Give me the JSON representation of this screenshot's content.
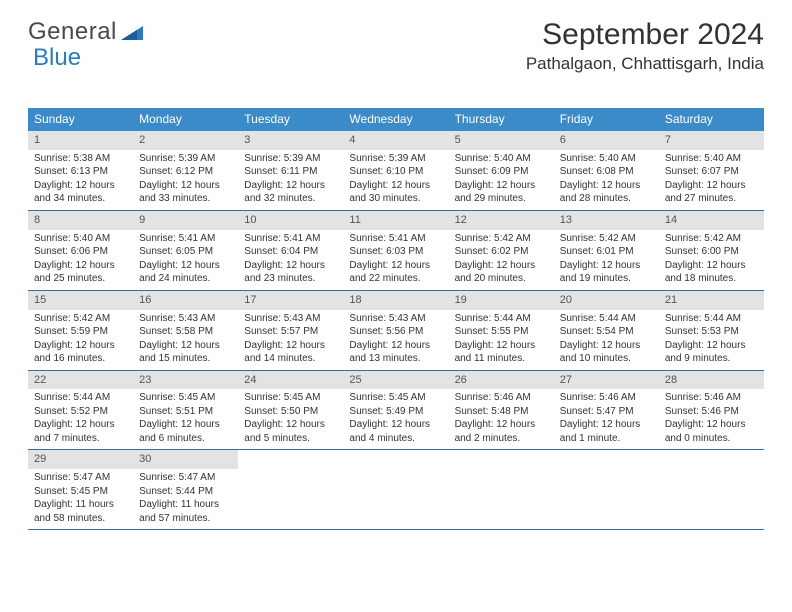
{
  "logo": {
    "text_a": "General",
    "text_b": "Blue"
  },
  "title": "September 2024",
  "location": "Pathalgaon, Chhattisgarh, India",
  "colors": {
    "header_bg": "#3b8bc9",
    "header_text": "#ffffff",
    "daynum_bg": "#e3e3e3",
    "daynum_text": "#555555",
    "row_border": "#2f6fa3",
    "body_text": "#333333",
    "logo_gray": "#4a4a4a",
    "logo_blue": "#2a7bbf",
    "page_bg": "#ffffff"
  },
  "typography": {
    "title_fontsize": 30,
    "location_fontsize": 17,
    "weekday_fontsize": 12,
    "daynum_fontsize": 11,
    "body_fontsize": 10
  },
  "weekdays": [
    "Sunday",
    "Monday",
    "Tuesday",
    "Wednesday",
    "Thursday",
    "Friday",
    "Saturday"
  ],
  "weeks": [
    [
      {
        "n": "1",
        "sr": "Sunrise: 5:38 AM",
        "ss": "Sunset: 6:13 PM",
        "dl": "Daylight: 12 hours and 34 minutes."
      },
      {
        "n": "2",
        "sr": "Sunrise: 5:39 AM",
        "ss": "Sunset: 6:12 PM",
        "dl": "Daylight: 12 hours and 33 minutes."
      },
      {
        "n": "3",
        "sr": "Sunrise: 5:39 AM",
        "ss": "Sunset: 6:11 PM",
        "dl": "Daylight: 12 hours and 32 minutes."
      },
      {
        "n": "4",
        "sr": "Sunrise: 5:39 AM",
        "ss": "Sunset: 6:10 PM",
        "dl": "Daylight: 12 hours and 30 minutes."
      },
      {
        "n": "5",
        "sr": "Sunrise: 5:40 AM",
        "ss": "Sunset: 6:09 PM",
        "dl": "Daylight: 12 hours and 29 minutes."
      },
      {
        "n": "6",
        "sr": "Sunrise: 5:40 AM",
        "ss": "Sunset: 6:08 PM",
        "dl": "Daylight: 12 hours and 28 minutes."
      },
      {
        "n": "7",
        "sr": "Sunrise: 5:40 AM",
        "ss": "Sunset: 6:07 PM",
        "dl": "Daylight: 12 hours and 27 minutes."
      }
    ],
    [
      {
        "n": "8",
        "sr": "Sunrise: 5:40 AM",
        "ss": "Sunset: 6:06 PM",
        "dl": "Daylight: 12 hours and 25 minutes."
      },
      {
        "n": "9",
        "sr": "Sunrise: 5:41 AM",
        "ss": "Sunset: 6:05 PM",
        "dl": "Daylight: 12 hours and 24 minutes."
      },
      {
        "n": "10",
        "sr": "Sunrise: 5:41 AM",
        "ss": "Sunset: 6:04 PM",
        "dl": "Daylight: 12 hours and 23 minutes."
      },
      {
        "n": "11",
        "sr": "Sunrise: 5:41 AM",
        "ss": "Sunset: 6:03 PM",
        "dl": "Daylight: 12 hours and 22 minutes."
      },
      {
        "n": "12",
        "sr": "Sunrise: 5:42 AM",
        "ss": "Sunset: 6:02 PM",
        "dl": "Daylight: 12 hours and 20 minutes."
      },
      {
        "n": "13",
        "sr": "Sunrise: 5:42 AM",
        "ss": "Sunset: 6:01 PM",
        "dl": "Daylight: 12 hours and 19 minutes."
      },
      {
        "n": "14",
        "sr": "Sunrise: 5:42 AM",
        "ss": "Sunset: 6:00 PM",
        "dl": "Daylight: 12 hours and 18 minutes."
      }
    ],
    [
      {
        "n": "15",
        "sr": "Sunrise: 5:42 AM",
        "ss": "Sunset: 5:59 PM",
        "dl": "Daylight: 12 hours and 16 minutes."
      },
      {
        "n": "16",
        "sr": "Sunrise: 5:43 AM",
        "ss": "Sunset: 5:58 PM",
        "dl": "Daylight: 12 hours and 15 minutes."
      },
      {
        "n": "17",
        "sr": "Sunrise: 5:43 AM",
        "ss": "Sunset: 5:57 PM",
        "dl": "Daylight: 12 hours and 14 minutes."
      },
      {
        "n": "18",
        "sr": "Sunrise: 5:43 AM",
        "ss": "Sunset: 5:56 PM",
        "dl": "Daylight: 12 hours and 13 minutes."
      },
      {
        "n": "19",
        "sr": "Sunrise: 5:44 AM",
        "ss": "Sunset: 5:55 PM",
        "dl": "Daylight: 12 hours and 11 minutes."
      },
      {
        "n": "20",
        "sr": "Sunrise: 5:44 AM",
        "ss": "Sunset: 5:54 PM",
        "dl": "Daylight: 12 hours and 10 minutes."
      },
      {
        "n": "21",
        "sr": "Sunrise: 5:44 AM",
        "ss": "Sunset: 5:53 PM",
        "dl": "Daylight: 12 hours and 9 minutes."
      }
    ],
    [
      {
        "n": "22",
        "sr": "Sunrise: 5:44 AM",
        "ss": "Sunset: 5:52 PM",
        "dl": "Daylight: 12 hours and 7 minutes."
      },
      {
        "n": "23",
        "sr": "Sunrise: 5:45 AM",
        "ss": "Sunset: 5:51 PM",
        "dl": "Daylight: 12 hours and 6 minutes."
      },
      {
        "n": "24",
        "sr": "Sunrise: 5:45 AM",
        "ss": "Sunset: 5:50 PM",
        "dl": "Daylight: 12 hours and 5 minutes."
      },
      {
        "n": "25",
        "sr": "Sunrise: 5:45 AM",
        "ss": "Sunset: 5:49 PM",
        "dl": "Daylight: 12 hours and 4 minutes."
      },
      {
        "n": "26",
        "sr": "Sunrise: 5:46 AM",
        "ss": "Sunset: 5:48 PM",
        "dl": "Daylight: 12 hours and 2 minutes."
      },
      {
        "n": "27",
        "sr": "Sunrise: 5:46 AM",
        "ss": "Sunset: 5:47 PM",
        "dl": "Daylight: 12 hours and 1 minute."
      },
      {
        "n": "28",
        "sr": "Sunrise: 5:46 AM",
        "ss": "Sunset: 5:46 PM",
        "dl": "Daylight: 12 hours and 0 minutes."
      }
    ],
    [
      {
        "n": "29",
        "sr": "Sunrise: 5:47 AM",
        "ss": "Sunset: 5:45 PM",
        "dl": "Daylight: 11 hours and 58 minutes."
      },
      {
        "n": "30",
        "sr": "Sunrise: 5:47 AM",
        "ss": "Sunset: 5:44 PM",
        "dl": "Daylight: 11 hours and 57 minutes."
      },
      null,
      null,
      null,
      null,
      null
    ]
  ]
}
